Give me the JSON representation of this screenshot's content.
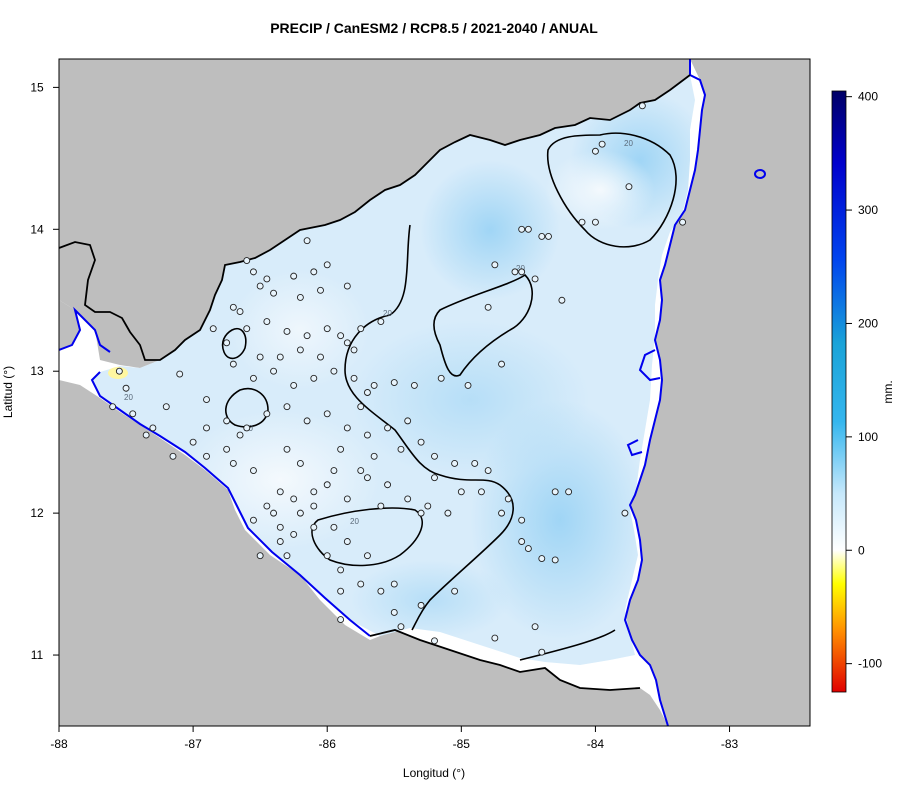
{
  "title": "PRECIP / CanESM2 / RCP8.5 / 2021-2040 / ANUAL",
  "xlabel": "Longitud (°)",
  "ylabel": "Latitud (°)",
  "colorbar": {
    "unit": "mm.",
    "min": -125,
    "max": 405,
    "ticks": [
      400,
      300,
      200,
      100,
      0,
      -100
    ]
  },
  "axes": {
    "xlim": [
      -88,
      -82.4
    ],
    "ylim": [
      10.5,
      15.2
    ],
    "xticks": [
      -88,
      -87,
      -86,
      -85,
      -84,
      -83
    ],
    "yticks": [
      11,
      12,
      13,
      14,
      15
    ]
  },
  "contour_label": "20",
  "colors": {
    "land": "#bebebe",
    "coast": "#0000ee",
    "border": "#000000",
    "field_low": "#e6f3fc",
    "field_high": "#9dd4f5"
  },
  "stations": [
    [
      -86.6,
      13.78
    ],
    [
      -86.55,
      13.7
    ],
    [
      -86.45,
      13.65
    ],
    [
      -86.25,
      13.67
    ],
    [
      -86.1,
      13.7
    ],
    [
      -86.0,
      13.75
    ],
    [
      -86.15,
      13.92
    ],
    [
      -86.7,
      13.45
    ],
    [
      -86.65,
      13.42
    ],
    [
      -86.5,
      13.6
    ],
    [
      -86.4,
      13.55
    ],
    [
      -86.2,
      13.52
    ],
    [
      -86.05,
      13.57
    ],
    [
      -85.85,
      13.6
    ],
    [
      -86.85,
      13.3
    ],
    [
      -86.75,
      13.2
    ],
    [
      -86.6,
      13.3
    ],
    [
      -86.45,
      13.35
    ],
    [
      -86.3,
      13.28
    ],
    [
      -86.15,
      13.25
    ],
    [
      -86.0,
      13.3
    ],
    [
      -85.9,
      13.25
    ],
    [
      -85.75,
      13.3
    ],
    [
      -85.6,
      13.35
    ],
    [
      -86.7,
      13.05
    ],
    [
      -86.55,
      12.95
    ],
    [
      -86.4,
      13.0
    ],
    [
      -86.25,
      12.9
    ],
    [
      -86.1,
      12.95
    ],
    [
      -85.95,
      13.0
    ],
    [
      -85.8,
      12.95
    ],
    [
      -85.65,
      12.9
    ],
    [
      -85.5,
      12.92
    ],
    [
      -86.9,
      12.8
    ],
    [
      -86.75,
      12.65
    ],
    [
      -86.6,
      12.6
    ],
    [
      -86.45,
      12.7
    ],
    [
      -86.3,
      12.75
    ],
    [
      -86.15,
      12.65
    ],
    [
      -86.0,
      12.7
    ],
    [
      -85.85,
      12.6
    ],
    [
      -85.7,
      12.55
    ],
    [
      -85.55,
      12.6
    ],
    [
      -85.4,
      12.65
    ],
    [
      -87.0,
      12.5
    ],
    [
      -86.9,
      12.4
    ],
    [
      -86.75,
      12.45
    ],
    [
      -86.55,
      12.3
    ],
    [
      -86.35,
      12.15
    ],
    [
      -86.25,
      12.1
    ],
    [
      -86.1,
      12.15
    ],
    [
      -86.0,
      12.2
    ],
    [
      -85.85,
      12.1
    ],
    [
      -85.7,
      12.25
    ],
    [
      -85.55,
      12.2
    ],
    [
      -85.4,
      12.1
    ],
    [
      -85.25,
      12.05
    ],
    [
      -85.1,
      12.0
    ],
    [
      -86.55,
      11.95
    ],
    [
      -86.35,
      11.9
    ],
    [
      -86.25,
      11.85
    ],
    [
      -86.1,
      11.9
    ],
    [
      -85.95,
      11.9
    ],
    [
      -86.3,
      11.7
    ],
    [
      -86.0,
      11.7
    ],
    [
      -85.9,
      11.6
    ],
    [
      -85.75,
      11.5
    ],
    [
      -85.6,
      11.45
    ],
    [
      -85.5,
      11.5
    ],
    [
      -85.9,
      11.45
    ],
    [
      -85.5,
      11.3
    ],
    [
      -85.45,
      11.2
    ],
    [
      -85.2,
      11.1
    ],
    [
      -85.9,
      11.25
    ],
    [
      -84.75,
      11.12
    ],
    [
      -84.45,
      11.2
    ],
    [
      -84.4,
      11.02
    ],
    [
      -85.35,
      12.9
    ],
    [
      -85.15,
      12.95
    ],
    [
      -84.95,
      12.9
    ],
    [
      -84.7,
      13.05
    ],
    [
      -84.8,
      13.45
    ],
    [
      -84.6,
      13.7
    ],
    [
      -84.55,
      13.7
    ],
    [
      -84.45,
      13.65
    ],
    [
      -84.25,
      13.5
    ],
    [
      -84.5,
      14.0
    ],
    [
      -84.55,
      14.0
    ],
    [
      -84.4,
      13.95
    ],
    [
      -84.35,
      13.95
    ],
    [
      -84.1,
      14.05
    ],
    [
      -84.0,
      14.05
    ],
    [
      -84.0,
      14.55
    ],
    [
      -83.95,
      14.6
    ],
    [
      -83.75,
      14.3
    ],
    [
      -83.65,
      14.87
    ],
    [
      -83.35,
      14.05
    ],
    [
      -84.75,
      13.75
    ],
    [
      -84.3,
      12.15
    ],
    [
      -84.2,
      12.15
    ],
    [
      -84.65,
      12.1
    ],
    [
      -84.55,
      11.95
    ],
    [
      -84.55,
      11.8
    ],
    [
      -84.5,
      11.75
    ],
    [
      -84.4,
      11.68
    ],
    [
      -84.3,
      11.67
    ],
    [
      -83.78,
      12.0
    ],
    [
      -84.9,
      12.35
    ],
    [
      -84.8,
      12.3
    ],
    [
      -85.05,
      12.35
    ],
    [
      -85.2,
      12.25
    ],
    [
      -85.3,
      12.5
    ],
    [
      -85.45,
      12.45
    ],
    [
      -85.65,
      12.4
    ],
    [
      -85.9,
      12.45
    ],
    [
      -85.75,
      12.75
    ],
    [
      -85.7,
      12.85
    ],
    [
      -85.8,
      13.15
    ],
    [
      -85.85,
      13.2
    ],
    [
      -86.05,
      13.1
    ],
    [
      -86.2,
      13.15
    ],
    [
      -86.35,
      13.1
    ],
    [
      -86.5,
      13.1
    ],
    [
      -87.1,
      12.98
    ],
    [
      -87.2,
      12.75
    ],
    [
      -87.3,
      12.6
    ],
    [
      -87.35,
      12.55
    ],
    [
      -87.45,
      12.7
    ],
    [
      -87.5,
      12.88
    ],
    [
      -87.55,
      13.0
    ],
    [
      -87.6,
      12.75
    ],
    [
      -87.15,
      12.4
    ],
    [
      -86.9,
      12.6
    ],
    [
      -86.7,
      12.35
    ],
    [
      -86.65,
      12.55
    ],
    [
      -86.3,
      12.45
    ],
    [
      -86.2,
      12.35
    ],
    [
      -85.95,
      12.3
    ],
    [
      -85.75,
      12.3
    ],
    [
      -86.45,
      12.05
    ],
    [
      -86.4,
      12.0
    ],
    [
      -85.2,
      12.4
    ],
    [
      -85.0,
      12.15
    ],
    [
      -84.85,
      12.15
    ],
    [
      -84.7,
      12.0
    ],
    [
      -85.3,
      12.0
    ],
    [
      -85.6,
      12.05
    ],
    [
      -86.1,
      12.05
    ],
    [
      -86.2,
      12.0
    ],
    [
      -85.85,
      11.8
    ],
    [
      -85.7,
      11.7
    ],
    [
      -86.35,
      11.8
    ],
    [
      -86.5,
      11.7
    ],
    [
      -85.05,
      11.45
    ],
    [
      -85.3,
      11.35
    ]
  ]
}
